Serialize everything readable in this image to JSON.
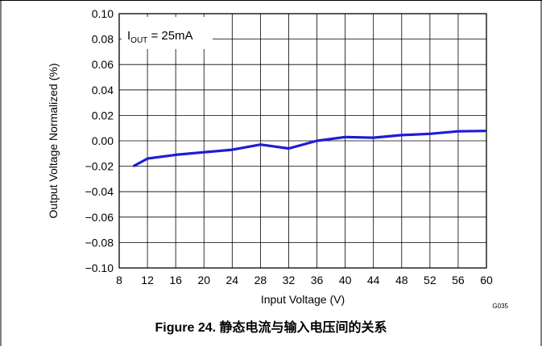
{
  "chart_data": {
    "type": "line",
    "title": "",
    "xlabel": "Input Voltage (V)",
    "ylabel": "Output Voltage Normalized (%)",
    "xlim": [
      8,
      60
    ],
    "ylim": [
      -0.1,
      0.1
    ],
    "x_ticks": [
      "8",
      "12",
      "16",
      "20",
      "24",
      "28",
      "32",
      "36",
      "40",
      "44",
      "48",
      "52",
      "56",
      "60"
    ],
    "y_ticks": [
      "0.10",
      "0.08",
      "0.06",
      "0.04",
      "0.02",
      "0.00",
      "−0.02",
      "−0.04",
      "−0.06",
      "−0.08",
      "−0.10"
    ],
    "grid": true,
    "annotation": {
      "main": "I",
      "sub": "OUT",
      "rest": " = 25mA"
    },
    "series": [
      {
        "color": "#1c1cd6",
        "x": [
          10,
          12,
          16,
          20,
          24,
          28,
          32,
          36,
          40,
          44,
          48,
          52,
          56,
          60
        ],
        "y": [
          -0.02,
          -0.014,
          -0.011,
          -0.009,
          -0.007,
          -0.003,
          -0.006,
          0.0,
          0.003,
          0.0025,
          0.0045,
          0.0055,
          0.0075,
          0.0078
        ]
      }
    ]
  },
  "figure_code": "G035",
  "caption": "Figure 24. 静态电流与输入电压间的关系"
}
